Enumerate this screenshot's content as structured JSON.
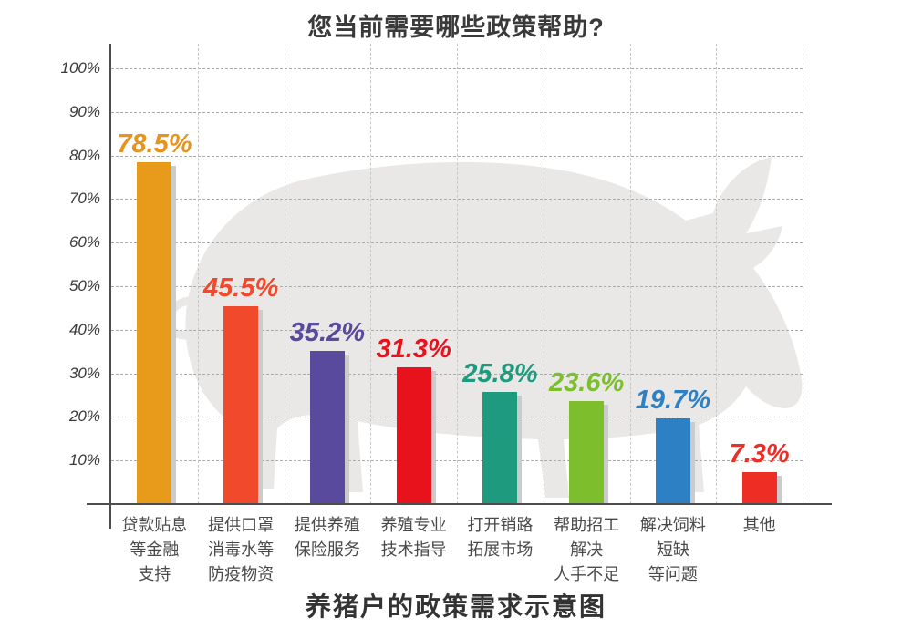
{
  "header": {
    "title": "您当前需要哪些政策帮助?"
  },
  "footer": {
    "title": "养猪户的政策需求示意图"
  },
  "chart_data": {
    "type": "bar",
    "title": "您当前需要哪些政策帮助?",
    "caption": "养猪户的政策需求示意图",
    "categories": [
      "贷款贴息等金融支持",
      "提供口罩消毒水等防疫物资",
      "提供养殖保险服务",
      "养殖专业技术指导",
      "打开销路拓展市场",
      "帮助招工解决人手不足",
      "解决饲料短缺等问题",
      "其他"
    ],
    "category_lines": [
      [
        "贷款贴息",
        "等金融",
        "支持"
      ],
      [
        "提供口罩",
        "消毒水等",
        "防疫物资"
      ],
      [
        "提供养殖",
        "保险服务"
      ],
      [
        "养殖专业",
        "技术指导"
      ],
      [
        "打开销路",
        "拓展市场"
      ],
      [
        "帮助招工",
        "解决",
        "人手不足"
      ],
      [
        "解决饲料",
        "短缺",
        "等问题"
      ],
      [
        "其他"
      ]
    ],
    "values": [
      78.5,
      45.5,
      35.2,
      31.3,
      25.8,
      23.6,
      19.7,
      7.3
    ],
    "value_labels": [
      "78.5%",
      "45.5%",
      "35.2%",
      "31.3%",
      "25.8%",
      "23.6%",
      "19.7%",
      "7.3%"
    ],
    "bar_colors": [
      "#e89a1b",
      "#f0492b",
      "#5a4a9e",
      "#e8121d",
      "#1e9b7e",
      "#7cbe2c",
      "#2e80c4",
      "#ee2d24"
    ],
    "label_colors": [
      "#e8931c",
      "#f0492b",
      "#5a4a9e",
      "#e8121d",
      "#1e9b7e",
      "#7cbe2c",
      "#2e80c4",
      "#ee2d24"
    ],
    "y_ticks": [
      "100%",
      "90%",
      "80%",
      "70%",
      "60%",
      "50%",
      "40%",
      "30%",
      "20%",
      "10%"
    ],
    "ylim": [
      0,
      100
    ],
    "grid": "dashed",
    "legend": "none",
    "watermark": "pig-silhouette",
    "shadow_color": "#cbcbcb",
    "axis_color": "#4d4d4d"
  }
}
